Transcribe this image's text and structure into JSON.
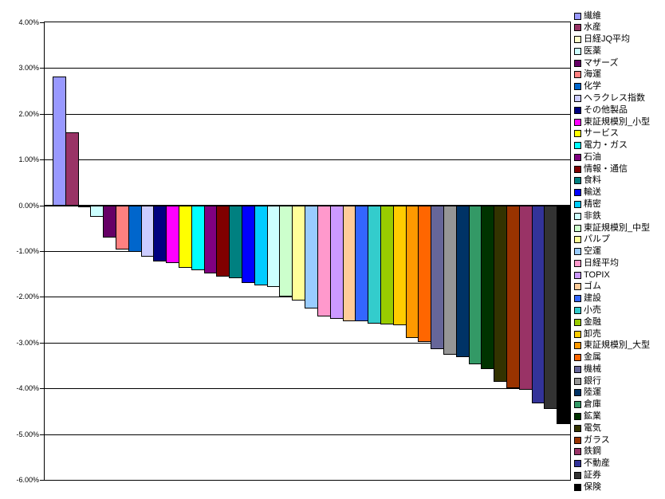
{
  "chart": {
    "background": "#FFFFFF",
    "plot_border_color": "#000000",
    "gridline_color": "#000000",
    "zero_axis_color": "#000000",
    "bar_border_color": "#000000",
    "text_color": "#000000"
  },
  "chart_data": {
    "type": "bar",
    "title": "",
    "xlabel": "",
    "ylabel": "",
    "ylim": [
      -6,
      4
    ],
    "ytick_step": 1,
    "grid": true,
    "legend_position": "right",
    "value_unit": "percent",
    "ytick_labels": [
      "4.00%",
      "3.00%",
      "2.00%",
      "1.00%",
      "0.00%",
      "-1.00%",
      "-2.00%",
      "-3.00%",
      "-4.00%",
      "-5.00%",
      "-6.00%"
    ],
    "categories": [
      "繊維",
      "水産",
      "日経JQ平均",
      "医薬",
      "マザーズ",
      "海運",
      "化学",
      "ヘラクレス指数",
      "その他製品",
      "東証規模別_小型",
      "サービス",
      "電力・ガス",
      "石油",
      "情報・通信",
      "食料",
      "輸送",
      "精密",
      "非鉄",
      "東証規模別_中型",
      "パルプ",
      "空運",
      "日経平均",
      "TOPIX",
      "ゴム",
      "建設",
      "小売",
      "金融",
      "卸売",
      "東証規模別_大型",
      "金属",
      "機械",
      "銀行",
      "陸運",
      "倉庫",
      "鉱業",
      "電気",
      "ガラス",
      "鉄鋼",
      "不動産",
      "証券",
      "保険"
    ],
    "values": [
      2.82,
      1.6,
      -0.05,
      -0.25,
      -0.7,
      -0.96,
      -1.02,
      -1.12,
      -1.22,
      -1.27,
      -1.37,
      -1.42,
      -1.48,
      -1.55,
      -1.59,
      -1.69,
      -1.75,
      -1.79,
      -2.0,
      -2.08,
      -2.25,
      -2.42,
      -2.48,
      -2.53,
      -2.54,
      -2.58,
      -2.6,
      -2.62,
      -2.9,
      -2.98,
      -3.15,
      -3.27,
      -3.31,
      -3.48,
      -3.58,
      -3.86,
      -3.99,
      -4.03,
      -4.32,
      -4.45,
      -4.78
    ],
    "colors": [
      "#9999FF",
      "#993366",
      "#FFFFCC",
      "#CCFFFF",
      "#660066",
      "#FF8080",
      "#0066CC",
      "#CCCCFF",
      "#000080",
      "#FF00FF",
      "#FFFF00",
      "#00FFFF",
      "#800080",
      "#800000",
      "#008080",
      "#0000FF",
      "#00CCFF",
      "#CCFFFF",
      "#CCFFCC",
      "#FFFF99",
      "#99CCFF",
      "#FF99CC",
      "#CC99FF",
      "#FFCC99",
      "#3366FF",
      "#33CCCC",
      "#99CC00",
      "#FFCC00",
      "#FF9900",
      "#FF6600",
      "#666699",
      "#969696",
      "#003366",
      "#339966",
      "#003300",
      "#333300",
      "#993300",
      "#993366",
      "#333399",
      "#333333",
      "#000000"
    ]
  }
}
